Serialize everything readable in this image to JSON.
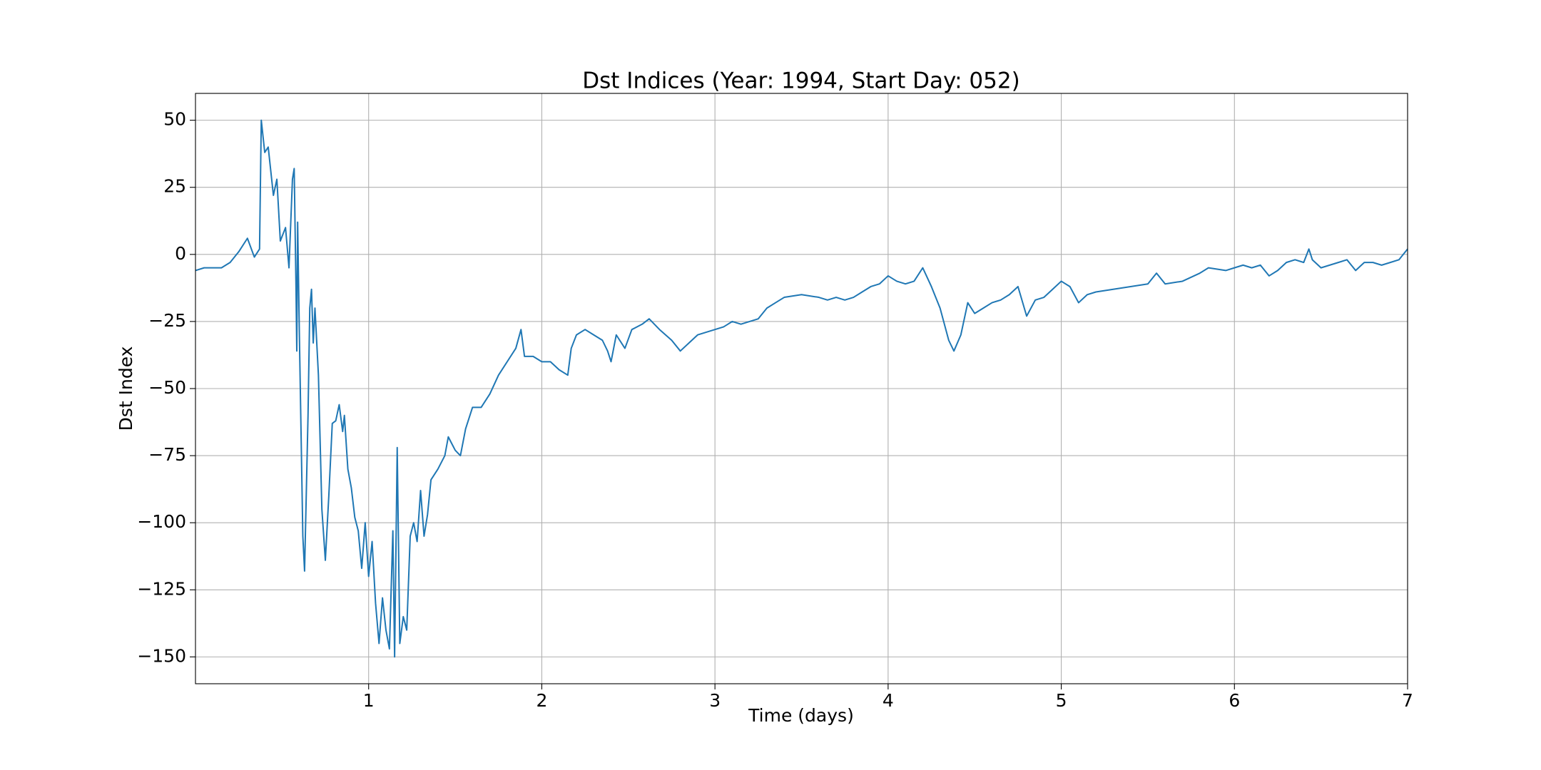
{
  "chart_data": {
    "type": "line",
    "title": "Dst Indices (Year: 1994, Start Day: 052)",
    "x_label": "Time (days)",
    "y_label": "Dst Index",
    "color": "#1f77b4",
    "grid": true,
    "xlim": [
      0,
      7
    ],
    "ylim": [
      -160,
      60
    ],
    "xticks": [
      1,
      2,
      3,
      4,
      5,
      6,
      7
    ],
    "yticks": [
      {
        "value": -150,
        "label": "−150"
      },
      {
        "value": -125,
        "label": "−125"
      },
      {
        "value": -100,
        "label": "−100"
      },
      {
        "value": -75,
        "label": "−75"
      },
      {
        "value": -50,
        "label": "−50"
      },
      {
        "value": -25,
        "label": "−25"
      },
      0,
      25,
      50
    ],
    "x": [
      0,
      0.05,
      0.1,
      0.15,
      0.2,
      0.25,
      0.3,
      0.34,
      0.37,
      0.38,
      0.4,
      0.42,
      0.45,
      0.47,
      0.49,
      0.52,
      0.54,
      0.56,
      0.57,
      0.58,
      0.585,
      0.59,
      0.6,
      0.62,
      0.63,
      0.65,
      0.66,
      0.67,
      0.68,
      0.69,
      0.71,
      0.73,
      0.75,
      0.77,
      0.79,
      0.81,
      0.83,
      0.85,
      0.86,
      0.88,
      0.9,
      0.92,
      0.94,
      0.96,
      0.98,
      1,
      1.02,
      1.04,
      1.06,
      1.08,
      1.1,
      1.12,
      1.14,
      1.15,
      1.165,
      1.18,
      1.2,
      1.22,
      1.24,
      1.26,
      1.28,
      1.3,
      1.32,
      1.34,
      1.36,
      1.4,
      1.44,
      1.46,
      1.5,
      1.53,
      1.56,
      1.6,
      1.65,
      1.7,
      1.75,
      1.8,
      1.85,
      1.88,
      1.9,
      1.95,
      2,
      2.05,
      2.1,
      2.15,
      2.17,
      2.2,
      2.25,
      2.3,
      2.35,
      2.38,
      2.4,
      2.43,
      2.48,
      2.52,
      2.58,
      2.62,
      2.68,
      2.75,
      2.8,
      2.85,
      2.9,
      2.95,
      3,
      3.05,
      3.1,
      3.15,
      3.2,
      3.25,
      3.3,
      3.35,
      3.4,
      3.5,
      3.6,
      3.65,
      3.7,
      3.75,
      3.8,
      3.85,
      3.9,
      3.95,
      4,
      4.05,
      4.1,
      4.15,
      4.2,
      4.25,
      4.3,
      4.35,
      4.38,
      4.42,
      4.46,
      4.5,
      4.55,
      4.6,
      4.65,
      4.7,
      4.75,
      4.8,
      4.85,
      4.9,
      4.95,
      5,
      5.05,
      5.1,
      5.15,
      5.2,
      5.3,
      5.4,
      5.5,
      5.55,
      5.6,
      5.7,
      5.8,
      5.85,
      5.95,
      6,
      6.05,
      6.1,
      6.15,
      6.2,
      6.25,
      6.3,
      6.35,
      6.4,
      6.43,
      6.45,
      6.5,
      6.55,
      6.6,
      6.65,
      6.7,
      6.75,
      6.8,
      6.85,
      6.9,
      6.95,
      7
    ],
    "values": [
      -6,
      -5,
      -5,
      -5,
      -3,
      1,
      6,
      -1,
      2,
      50,
      38,
      40,
      22,
      28,
      5,
      10,
      -5,
      28,
      32,
      -10,
      -36,
      12,
      -30,
      -105,
      -118,
      -60,
      -20,
      -13,
      -33,
      -20,
      -45,
      -95,
      -114,
      -90,
      -63,
      -62,
      -56,
      -66,
      -60,
      -80,
      -87,
      -98,
      -103,
      -117,
      -100,
      -120,
      -107,
      -130,
      -145,
      -128,
      -140,
      -147,
      -103,
      -150,
      -72,
      -145,
      -135,
      -140,
      -105,
      -100,
      -107,
      -88,
      -105,
      -97,
      -84,
      -80,
      -75,
      -68,
      -73,
      -75,
      -65,
      -57,
      -57,
      -52,
      -45,
      -40,
      -35,
      -28,
      -38,
      -38,
      -40,
      -40,
      -43,
      -45,
      -35,
      -30,
      -28,
      -30,
      -32,
      -36,
      -40,
      -30,
      -35,
      -28,
      -26,
      -24,
      -28,
      -32,
      -36,
      -33,
      -30,
      -29,
      -28,
      -27,
      -25,
      -26,
      -25,
      -24,
      -20,
      -18,
      -16,
      -15,
      -16,
      -17,
      -16,
      -17,
      -16,
      -14,
      -12,
      -11,
      -8,
      -10,
      -11,
      -10,
      -5,
      -12,
      -20,
      -32,
      -36,
      -30,
      -18,
      -22,
      -20,
      -18,
      -17,
      -15,
      -12,
      -23,
      -17,
      -16,
      -13,
      -10,
      -12,
      -18,
      -15,
      -14,
      -13,
      -12,
      -11,
      -7,
      -11,
      -10,
      -7,
      -5,
      -6,
      -5,
      -4,
      -5,
      -4,
      -8,
      -6,
      -3,
      -2,
      -3,
      2,
      -2,
      -5,
      -4,
      -3,
      -2,
      -6,
      -3,
      -3,
      -4,
      -3,
      -2,
      2
    ]
  }
}
